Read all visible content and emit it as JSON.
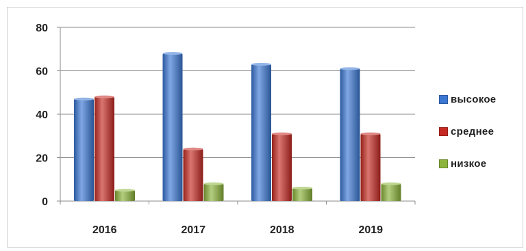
{
  "chart_data": {
    "type": "bar",
    "categories": [
      "2016",
      "2017",
      "2018",
      "2019"
    ],
    "series": [
      {
        "name": "высокое",
        "color": "#3b78d4",
        "values": [
          47,
          68,
          63,
          61
        ]
      },
      {
        "name": "среднее",
        "color": "#c62a23",
        "values": [
          48,
          24,
          31,
          31
        ]
      },
      {
        "name": "низкое",
        "color": "#8cb43a",
        "values": [
          5,
          8,
          6,
          8
        ]
      }
    ],
    "ylim": [
      0,
      80
    ],
    "yticks": [
      "0",
      "20",
      "40",
      "60",
      "80"
    ],
    "grid": true,
    "legend_position": "right"
  }
}
